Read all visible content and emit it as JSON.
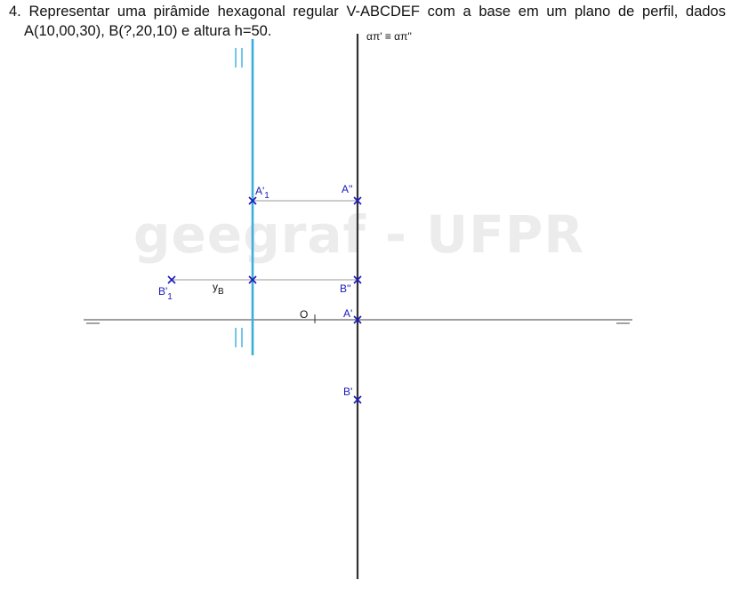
{
  "problem": {
    "number": "4.",
    "line1": "Representar uma pirâmide hexagonal regular V-ABCDEF com a base em um plano de perfil, dados",
    "line2": "A(10,00,30), B(?,20,10) e altura h=50."
  },
  "watermark": "geegraf - UFPR",
  "labels": {
    "plane": "απ' ≡ απ''",
    "origin": "O",
    "A2": "A''",
    "A1r_main": "A'",
    "A1r_sub": "1",
    "B2": "B''",
    "B1r_main": "B'",
    "B1r_sub": "1",
    "A1": "A'",
    "B1": "B'",
    "yB_main": "y",
    "yB_sub": "B"
  },
  "colors": {
    "points": "#1a1ab8",
    "rotated_trace": "#3aaee0",
    "lines": "#555555",
    "plane_trace": "#333333",
    "watermark": "#ececec"
  }
}
